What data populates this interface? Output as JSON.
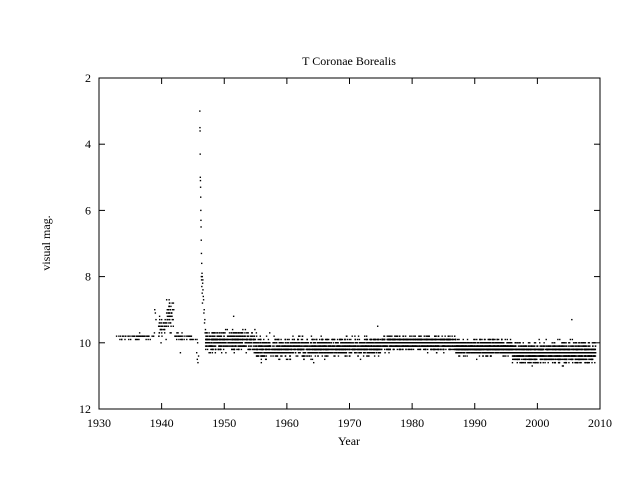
{
  "chart_data": {
    "type": "scatter",
    "title": "T Coronae Borealis",
    "xlabel": "Year",
    "ylabel": "visual mag.",
    "xlim": [
      1930,
      2010
    ],
    "ylim": [
      12,
      2
    ],
    "y_inverted": true,
    "grid": false,
    "legend": "none",
    "x_ticks": [
      "1930",
      "1940",
      "1950",
      "1960",
      "1970",
      "1980",
      "1990",
      "2000",
      "2010"
    ],
    "y_ticks": [
      "2",
      "4",
      "6",
      "8",
      "10",
      "12"
    ],
    "marker_color": "#000000",
    "series": [
      {
        "segments": [
          {
            "x0": 1932.8,
            "x1": 1939.5,
            "mean": 9.82,
            "spread": 0.08,
            "count": 60
          },
          {
            "x0": 1939.5,
            "x1": 1940.8,
            "mean": 9.55,
            "spread": 0.35,
            "count": 40
          },
          {
            "x0": 1940.8,
            "x1": 1942.0,
            "mean": 9.15,
            "spread": 0.45,
            "count": 45
          },
          {
            "x0": 1942.0,
            "x1": 1945.5,
            "mean": 9.82,
            "spread": 0.1,
            "count": 40
          },
          {
            "x0": 1947.0,
            "x1": 1955.0,
            "mean": 9.95,
            "spread": 0.3,
            "count": 520
          },
          {
            "x0": 1955.0,
            "x1": 1965.0,
            "mean": 10.15,
            "spread": 0.3,
            "count": 620
          },
          {
            "x0": 1965.0,
            "x1": 1975.0,
            "mean": 10.12,
            "spread": 0.25,
            "count": 700
          },
          {
            "x0": 1975.0,
            "x1": 1987.0,
            "mean": 10.02,
            "spread": 0.2,
            "count": 1000
          },
          {
            "x0": 1987.0,
            "x1": 1996.0,
            "mean": 10.15,
            "spread": 0.22,
            "count": 900
          },
          {
            "x0": 1996.0,
            "x1": 2009.3,
            "mean": 10.3,
            "spread": 0.28,
            "count": 1300
          }
        ],
        "outburst": {
          "points": [
            [
              1946.1,
              3.0
            ],
            [
              1946.12,
              3.5
            ],
            [
              1946.14,
              3.6
            ],
            [
              1946.16,
              4.3
            ],
            [
              1946.18,
              5.0
            ],
            [
              1946.2,
              5.1
            ],
            [
              1946.22,
              5.3
            ],
            [
              1946.24,
              5.6
            ],
            [
              1946.26,
              6.0
            ],
            [
              1946.28,
              6.3
            ],
            [
              1946.3,
              6.5
            ],
            [
              1946.33,
              6.9
            ],
            [
              1946.36,
              7.3
            ],
            [
              1946.4,
              7.6
            ],
            [
              1946.45,
              7.9
            ],
            [
              1946.5,
              8.0
            ],
            [
              1946.55,
              8.2
            ],
            [
              1946.6,
              8.4
            ],
            [
              1946.7,
              8.7
            ],
            [
              1946.8,
              9.0
            ],
            [
              1946.9,
              9.3
            ],
            [
              1947.0,
              9.6
            ],
            [
              1946.35,
              8.0
            ],
            [
              1946.42,
              8.3
            ],
            [
              1946.48,
              8.5
            ],
            [
              1946.52,
              8.8
            ],
            [
              1946.58,
              8.1
            ],
            [
              1946.65,
              8.6
            ],
            [
              1946.75,
              9.1
            ],
            [
              1946.85,
              9.4
            ],
            [
              1946.95,
              9.7
            ],
            [
              1946.38,
              8.1
            ]
          ],
          "pre_dips": [
            [
              1945.6,
              10.3
            ],
            [
              1945.7,
              10.5
            ],
            [
              1945.8,
              10.6
            ],
            [
              1945.9,
              10.4
            ],
            [
              1945.65,
              9.9
            ],
            [
              1945.75,
              10.0
            ]
          ]
        },
        "flares": [
          [
            1938.9,
            9.0
          ],
          [
            1939.0,
            9.1
          ],
          [
            1939.1,
            9.3
          ],
          [
            1941.2,
            8.7
          ],
          [
            1941.3,
            8.8
          ],
          [
            1941.4,
            9.0
          ],
          [
            1951.5,
            9.2
          ],
          [
            1974.5,
            9.5
          ],
          [
            2005.5,
            9.3
          ],
          [
            1943.0,
            10.3
          ]
        ]
      }
    ]
  }
}
